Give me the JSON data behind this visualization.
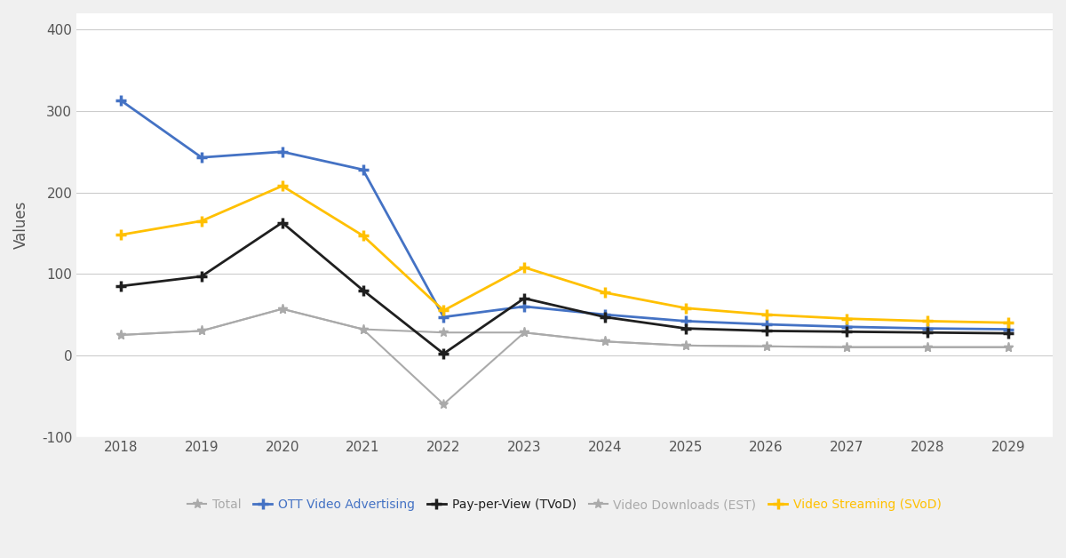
{
  "years": [
    2018,
    2019,
    2020,
    2021,
    2022,
    2023,
    2024,
    2025,
    2026,
    2027,
    2028,
    2029
  ],
  "total": [
    25,
    30,
    57,
    32,
    -60,
    28,
    17,
    12,
    11,
    10,
    10,
    10
  ],
  "ott_video_advertising": [
    313,
    243,
    250,
    228,
    47,
    60,
    50,
    42,
    38,
    35,
    33,
    32
  ],
  "pay_per_view": [
    85,
    97,
    163,
    80,
    2,
    70,
    47,
    33,
    30,
    29,
    28,
    27
  ],
  "video_downloads": [
    25,
    30,
    57,
    32,
    28,
    28,
    17,
    12,
    11,
    10,
    10,
    10
  ],
  "video_streaming": [
    148,
    165,
    208,
    147,
    55,
    108,
    77,
    58,
    50,
    45,
    42,
    40
  ],
  "series_colors": {
    "total": "#aaaaaa",
    "ott_video_advertising": "#4472c4",
    "pay_per_view": "#1f1f1f",
    "video_downloads": "#aaaaaa",
    "video_streaming": "#ffc000"
  },
  "series_labels": {
    "total": "Total",
    "ott_video_advertising": "OTT Video Advertising",
    "pay_per_view": "Pay-per-View (TVoD)",
    "video_downloads": "Video Downloads (EST)",
    "video_streaming": "Video Streaming (SVoD)"
  },
  "ylabel": "Values",
  "ylim": [
    -100,
    420
  ],
  "yticks": [
    -100,
    0,
    100,
    200,
    300,
    400
  ],
  "bg_color": "#ffffff",
  "grid_color": "#cccccc"
}
